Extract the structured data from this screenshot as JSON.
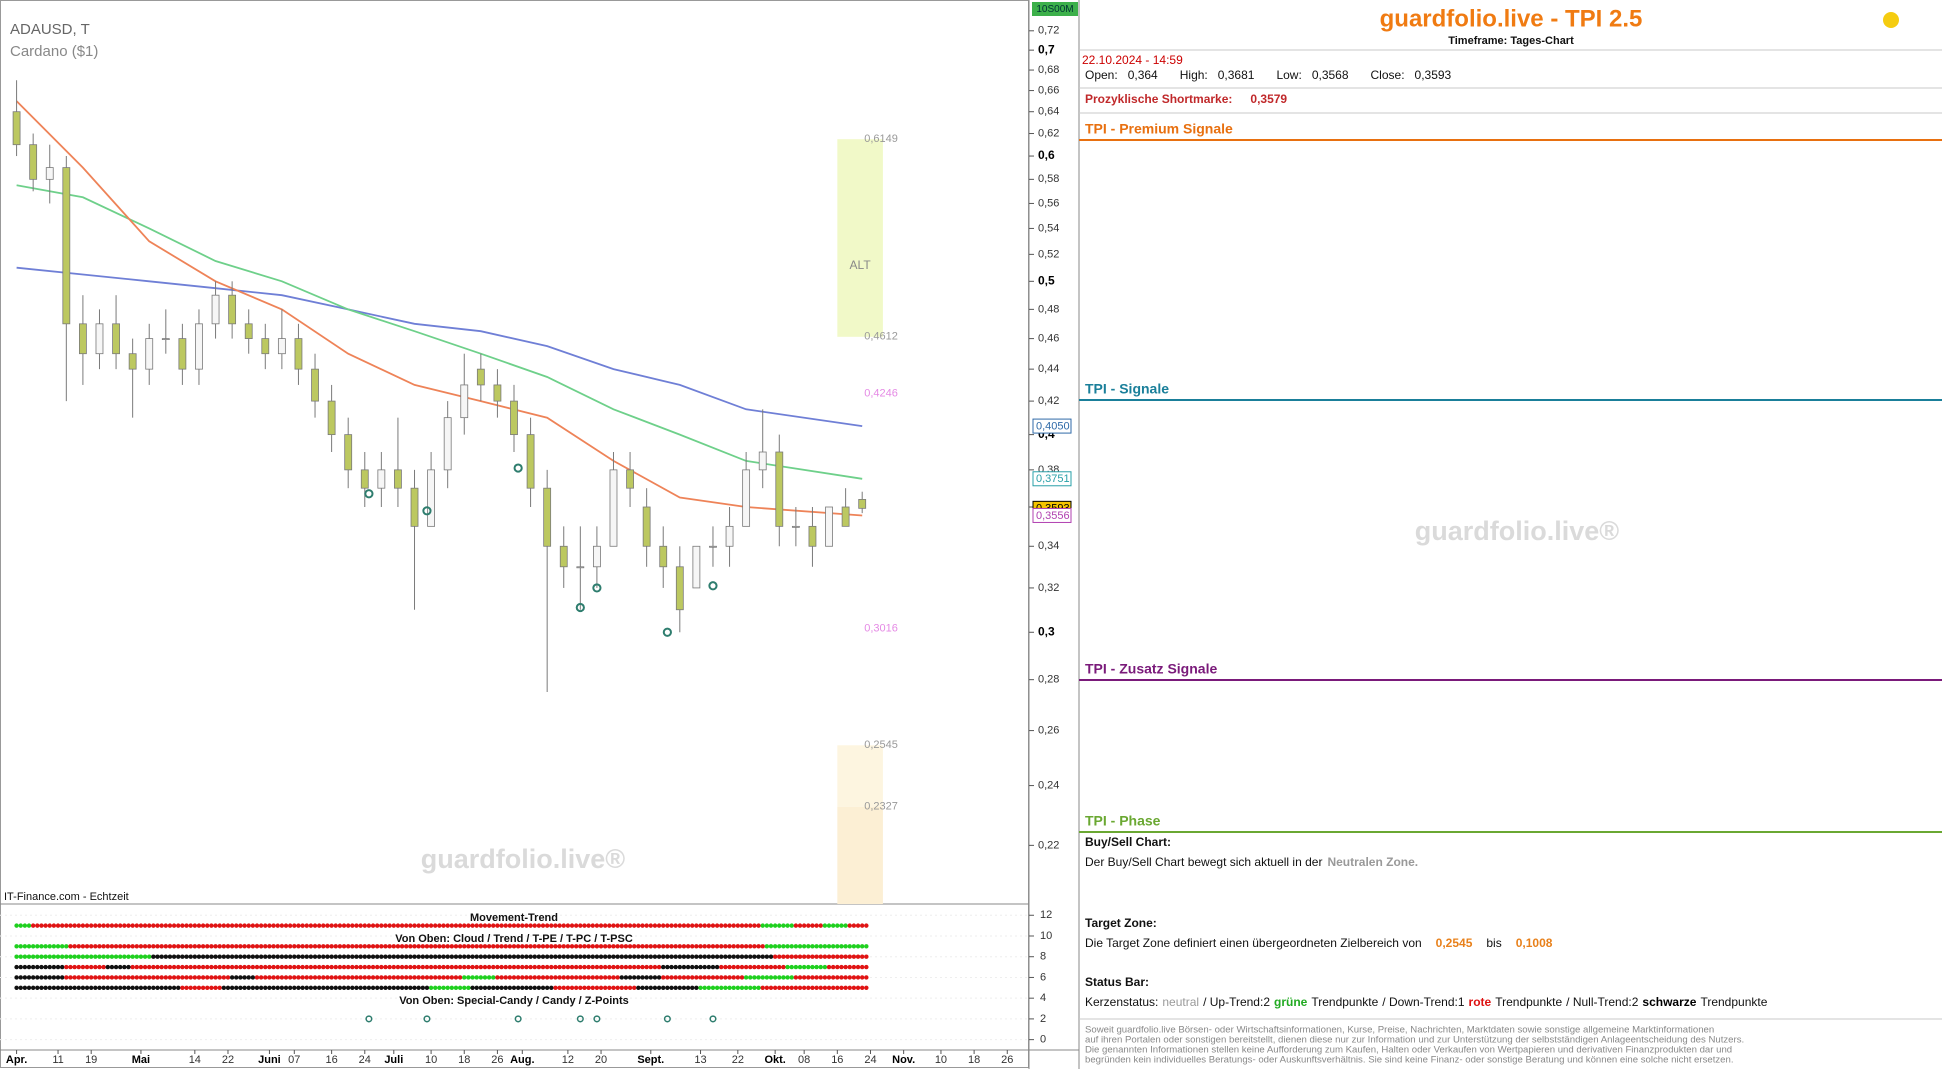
{
  "header": {
    "symbol": "ADAUSD, T",
    "name": "Cardano ($1)",
    "source": "IT-Finance.com - Echtzeit",
    "badge": "10S00M",
    "watermark": "guardfolio.live®"
  },
  "chart_data": [
    {
      "type": "candlestick",
      "x": [
        "2024-04-01",
        "2024-04-05",
        "2024-04-09",
        "2024-04-13",
        "2024-04-17",
        "2024-04-21",
        "2024-04-25",
        "2024-04-29",
        "2024-05-03",
        "2024-05-07",
        "2024-05-11",
        "2024-05-15",
        "2024-05-19",
        "2024-05-23",
        "2024-05-27",
        "2024-05-31",
        "2024-06-04",
        "2024-06-08",
        "2024-06-12",
        "2024-06-16",
        "2024-06-20",
        "2024-06-24",
        "2024-06-28",
        "2024-07-02",
        "2024-07-06",
        "2024-07-10",
        "2024-07-14",
        "2024-07-18",
        "2024-07-22",
        "2024-07-26",
        "2024-07-30",
        "2024-08-03",
        "2024-08-07",
        "2024-08-11",
        "2024-08-15",
        "2024-08-19",
        "2024-08-23",
        "2024-08-27",
        "2024-08-31",
        "2024-09-04",
        "2024-09-08",
        "2024-09-12",
        "2024-09-16",
        "2024-09-20",
        "2024-09-24",
        "2024-09-28",
        "2024-10-02",
        "2024-10-06",
        "2024-10-10",
        "2024-10-14",
        "2024-10-18",
        "2024-10-22"
      ],
      "open": [
        0.64,
        0.61,
        0.58,
        0.59,
        0.47,
        0.45,
        0.47,
        0.45,
        0.44,
        0.46,
        0.46,
        0.44,
        0.47,
        0.49,
        0.47,
        0.46,
        0.45,
        0.46,
        0.44,
        0.42,
        0.4,
        0.38,
        0.37,
        0.38,
        0.37,
        0.35,
        0.38,
        0.41,
        0.44,
        0.43,
        0.42,
        0.4,
        0.37,
        0.34,
        0.33,
        0.33,
        0.34,
        0.38,
        0.36,
        0.34,
        0.33,
        0.32,
        0.34,
        0.34,
        0.35,
        0.38,
        0.39,
        0.35,
        0.35,
        0.34,
        0.36,
        0.364
      ],
      "high": [
        0.67,
        0.62,
        0.61,
        0.6,
        0.49,
        0.48,
        0.49,
        0.46,
        0.47,
        0.48,
        0.47,
        0.48,
        0.5,
        0.5,
        0.48,
        0.47,
        0.48,
        0.47,
        0.45,
        0.43,
        0.41,
        0.39,
        0.39,
        0.41,
        0.38,
        0.39,
        0.42,
        0.45,
        0.45,
        0.44,
        0.43,
        0.41,
        0.38,
        0.35,
        0.35,
        0.35,
        0.39,
        0.39,
        0.37,
        0.35,
        0.34,
        0.34,
        0.35,
        0.36,
        0.39,
        0.415,
        0.4,
        0.36,
        0.36,
        0.36,
        0.37,
        0.3681
      ],
      "low": [
        0.6,
        0.57,
        0.56,
        0.42,
        0.43,
        0.44,
        0.44,
        0.41,
        0.43,
        0.45,
        0.43,
        0.43,
        0.46,
        0.46,
        0.45,
        0.44,
        0.44,
        0.43,
        0.41,
        0.39,
        0.37,
        0.36,
        0.36,
        0.36,
        0.31,
        0.35,
        0.37,
        0.4,
        0.42,
        0.41,
        0.39,
        0.36,
        0.275,
        0.32,
        0.31,
        0.32,
        0.34,
        0.36,
        0.33,
        0.32,
        0.3,
        0.32,
        0.33,
        0.33,
        0.35,
        0.37,
        0.34,
        0.34,
        0.33,
        0.34,
        0.35,
        0.3568
      ],
      "close": [
        0.61,
        0.58,
        0.59,
        0.47,
        0.45,
        0.47,
        0.45,
        0.44,
        0.46,
        0.46,
        0.44,
        0.47,
        0.49,
        0.47,
        0.46,
        0.45,
        0.46,
        0.44,
        0.42,
        0.4,
        0.38,
        0.37,
        0.38,
        0.37,
        0.35,
        0.38,
        0.41,
        0.43,
        0.43,
        0.42,
        0.4,
        0.37,
        0.34,
        0.33,
        0.33,
        0.34,
        0.38,
        0.37,
        0.34,
        0.33,
        0.31,
        0.34,
        0.34,
        0.35,
        0.38,
        0.39,
        0.35,
        0.35,
        0.34,
        0.36,
        0.35,
        0.3593
      ],
      "up_color": "#f6f6f6",
      "down_color": "#bcc860",
      "edge_color": "#7a7a7a",
      "xlim": [
        "2024-03-28",
        "2024-12-01"
      ],
      "xticks": [
        {
          "value": "2024-04-01",
          "label": "Apr."
        },
        {
          "value": "2024-04-11",
          "label": "11"
        },
        {
          "value": "2024-04-19",
          "label": "19"
        },
        {
          "value": "2024-05-01",
          "label": "Mai"
        },
        {
          "value": "2024-05-14",
          "label": "14"
        },
        {
          "value": "2024-05-22",
          "label": "22"
        },
        {
          "value": "2024-06-01",
          "label": "Juni"
        },
        {
          "value": "2024-06-07",
          "label": "07"
        },
        {
          "value": "2024-06-16",
          "label": "16"
        },
        {
          "value": "2024-06-24",
          "label": "24"
        },
        {
          "value": "2024-07-01",
          "label": "Juli"
        },
        {
          "value": "2024-07-10",
          "label": "10"
        },
        {
          "value": "2024-07-18",
          "label": "18"
        },
        {
          "value": "2024-07-26",
          "label": "26"
        },
        {
          "value": "2024-08-01",
          "label": "Aug."
        },
        {
          "value": "2024-08-12",
          "label": "12"
        },
        {
          "value": "2024-08-20",
          "label": "20"
        },
        {
          "value": "2024-09-01",
          "label": "Sept."
        },
        {
          "value": "2024-09-13",
          "label": "13"
        },
        {
          "value": "2024-09-22",
          "label": "22"
        },
        {
          "value": "2024-10-01",
          "label": "Okt."
        },
        {
          "value": "2024-10-08",
          "label": "08"
        },
        {
          "value": "2024-10-16",
          "label": "16"
        },
        {
          "value": "2024-10-24",
          "label": "24"
        },
        {
          "value": "2024-11-01",
          "label": "Nov."
        },
        {
          "value": "2024-11-10",
          "label": "10"
        },
        {
          "value": "2024-11-18",
          "label": "18"
        },
        {
          "value": "2024-11-26",
          "label": "26"
        }
      ],
      "ylim": [
        0.202,
        0.753
      ],
      "log": true,
      "yticks": [
        {
          "value": 0.22,
          "label": "0,22"
        },
        {
          "value": 0.24,
          "label": "0,24"
        },
        {
          "value": 0.26,
          "label": "0,26"
        },
        {
          "value": 0.28,
          "label": "0,28"
        },
        {
          "value": 0.3,
          "label": "0,3"
        },
        {
          "value": 0.32,
          "label": "0,32"
        },
        {
          "value": 0.34,
          "label": "0,34"
        },
        {
          "value": 0.36,
          "label": "0,36"
        },
        {
          "value": 0.38,
          "label": "0,38"
        },
        {
          "value": 0.4,
          "label": "0,4"
        },
        {
          "value": 0.42,
          "label": "0,42"
        },
        {
          "value": 0.44,
          "label": "0,44"
        },
        {
          "value": 0.46,
          "label": "0,46"
        },
        {
          "value": 0.48,
          "label": "0,48"
        },
        {
          "value": 0.5,
          "label": "0,5"
        },
        {
          "value": 0.52,
          "label": "0,52"
        },
        {
          "value": 0.54,
          "label": "0,54"
        },
        {
          "value": 0.56,
          "label": "0,56"
        },
        {
          "value": 0.58,
          "label": "0,58"
        },
        {
          "value": 0.6,
          "label": "0,6"
        },
        {
          "value": 0.62,
          "label": "0,62"
        },
        {
          "value": 0.64,
          "label": "0,64"
        },
        {
          "value": 0.66,
          "label": "0,66"
        },
        {
          "value": 0.68,
          "label": "0,68"
        },
        {
          "value": 0.7,
          "label": "0,7"
        },
        {
          "value": 0.72,
          "label": "0,72"
        }
      ],
      "ribbon": {
        "x": [
          "2024-04-01",
          "2024-04-17",
          "2024-05-03",
          "2024-05-19",
          "2024-06-04",
          "2024-06-20",
          "2024-07-06",
          "2024-07-22",
          "2024-08-07",
          "2024-08-23",
          "2024-09-08",
          "2024-09-24",
          "2024-10-22"
        ],
        "series": [
          {
            "color": "#6f7fd6",
            "values": [
              0.51,
              0.505,
              0.5,
              0.495,
              0.49,
              0.48,
              0.47,
              0.465,
              0.455,
              0.44,
              0.43,
              0.415,
              0.405
            ]
          },
          {
            "color": "#6ed08a",
            "values": [
              0.575,
              0.565,
              0.54,
              0.515,
              0.5,
              0.48,
              0.465,
              0.45,
              0.435,
              0.415,
              0.4,
              0.385,
              0.3751
            ]
          },
          {
            "color": "#ee8358",
            "values": [
              0.65,
              0.59,
              0.53,
              0.5,
              0.48,
              0.45,
              0.43,
              0.42,
              0.41,
              0.385,
              0.365,
              0.36,
              0.3556
            ]
          }
        ]
      },
      "price_labels": [
        {
          "value": 0.405,
          "label": "0,4050",
          "color": "#2f6aa8",
          "background": "#ffffff"
        },
        {
          "value": 0.3751,
          "label": "0,3751",
          "color": "#2aa0a8",
          "background": "#ffffff"
        },
        {
          "value": 0.3593,
          "label": "0,3593",
          "color": "#000000",
          "background": "#f5c400"
        },
        {
          "value": 0.3556,
          "label": "0,3556",
          "color": "#b040b0",
          "background": "#ffffff"
        }
      ],
      "zones": [
        {
          "x0": "2024-10-16",
          "x1": "2024-10-27",
          "high": {
            "value": 0.6149,
            "label": "0,6149"
          },
          "low": {
            "value": 0.4612,
            "label": "0,4612"
          },
          "label": "ALT",
          "color": "#f1f9c8"
        },
        {
          "x0": "2024-10-16",
          "x1": "2024-10-27",
          "high": {
            "value": 0.2545,
            "label": "0,2545"
          },
          "level": {
            "value": 0.2327,
            "label": "0,2327"
          },
          "color": "#fdf5e0",
          "color2": "#fcefd4"
        }
      ],
      "levels": [
        {
          "x": "2024-10-27",
          "value": 0.4246,
          "label": "0,4246",
          "color": "#e58ae5"
        },
        {
          "x": "2024-10-27",
          "value": 0.3016,
          "label": "0,3016",
          "color": "#e58ae5"
        }
      ],
      "signals": {
        "x": [
          "2024-06-25",
          "2024-07-09",
          "2024-07-31",
          "2024-08-15",
          "2024-08-19",
          "2024-09-05",
          "2024-09-16"
        ],
        "values": [
          0.367,
          0.358,
          0.381,
          0.311,
          0.32,
          0.3,
          0.321
        ],
        "color": "#2e7d6e"
      }
    },
    {
      "type": "dots",
      "title": "Movement-Trend",
      "subtitles": [
        "Von Oben: Cloud / Trend / T-PE / T-PC / T-PSC",
        "Von Oben: Special-Candy / Candy / Z-Points"
      ],
      "start": "2024-04-01",
      "ylim": [
        -1,
        12.7
      ],
      "yticks": [
        0,
        2,
        4,
        6,
        8,
        10,
        12
      ],
      "colors": {
        "G": "#1fd01f",
        "R": "#e01414",
        "K": "#111111"
      },
      "rows": [
        {
          "y": 11,
          "runs": [
            [
              "G",
              4
            ],
            [
              "R",
              176
            ],
            [
              "G",
              8
            ],
            [
              "R",
              7
            ],
            [
              "G",
              6
            ],
            [
              "R",
              5
            ]
          ]
        },
        {
          "y": 9,
          "runs": [
            [
              "G",
              13
            ],
            [
              "R",
              168
            ],
            [
              "G",
              25
            ]
          ]
        },
        {
          "y": 8,
          "runs": [
            [
              "G",
              33
            ],
            [
              "K",
              150
            ],
            [
              "R",
              23
            ]
          ]
        },
        {
          "y": 7,
          "runs": [
            [
              "K",
              12
            ],
            [
              "R",
              10
            ],
            [
              "K",
              6
            ],
            [
              "R",
              128
            ],
            [
              "K",
              14
            ],
            [
              "R",
              16
            ],
            [
              "G",
              10
            ],
            [
              "R",
              10
            ]
          ]
        },
        {
          "y": 6,
          "runs": [
            [
              "K",
              12
            ],
            [
              "R",
              40
            ],
            [
              "K",
              6
            ],
            [
              "R",
              50
            ],
            [
              "G",
              8
            ],
            [
              "R",
              30
            ],
            [
              "K",
              10
            ],
            [
              "R",
              20
            ],
            [
              "G",
              12
            ],
            [
              "R",
              18
            ]
          ]
        },
        {
          "y": 5,
          "runs": [
            [
              "K",
              40
            ],
            [
              "R",
              10
            ],
            [
              "K",
              50
            ],
            [
              "G",
              10
            ],
            [
              "K",
              20
            ],
            [
              "R",
              20
            ],
            [
              "K",
              15
            ],
            [
              "G",
              15
            ],
            [
              "R",
              26
            ]
          ]
        }
      ],
      "zpoints": {
        "x": [
          "2024-06-25",
          "2024-07-09",
          "2024-07-31",
          "2024-08-15",
          "2024-08-19",
          "2024-09-05",
          "2024-09-16"
        ],
        "values": [
          2,
          2,
          2,
          2,
          2,
          2,
          2
        ],
        "color": "#2e7d6e"
      }
    }
  ],
  "panel": {
    "title": "guardfolio.live - TPI 2.5",
    "timeframe": "Timeframe: Tages-Chart",
    "datetime": "22.10.2024 - 14:59",
    "ohlc": [
      {
        "label": "Open:",
        "value": "0,364"
      },
      {
        "label": "High:",
        "value": "0,3681"
      },
      {
        "label": "Low:",
        "value": "0,3568"
      },
      {
        "label": "Close:",
        "value": "0,3593"
      }
    ],
    "shortmark": {
      "label": "Prozyklische Shortmarke:",
      "value": "0,3579"
    },
    "sections": [
      {
        "title": "TPI - Premium Signale",
        "color": "#e87010"
      },
      {
        "title": "TPI - Signale",
        "color": "#1a7f9a"
      },
      {
        "title": "TPI - Zusatz Signale",
        "color": "#7a1a7a"
      },
      {
        "title": "TPI - Phase",
        "color": "#6aa832"
      }
    ],
    "buysell": {
      "heading": "Buy/Sell Chart:",
      "text": "Der Buy/Sell Chart bewegt sich aktuell in der",
      "zone": "Neutralen Zone."
    },
    "target": {
      "heading": "Target Zone:",
      "text": "Die Target Zone definiert einen übergeordneten Zielbereich von",
      "from": "0,2545",
      "between": "bis",
      "to": "0,1008"
    },
    "status": {
      "heading": "Status Bar:",
      "parts": [
        {
          "text": "Kerzenstatus:"
        },
        {
          "text": "neutral",
          "color": "#9a9a9a"
        },
        {
          "text": "/ Up-Trend:2"
        },
        {
          "text": "grüne",
          "color": "#22aa22",
          "bold": true
        },
        {
          "text": "Trendpunkte"
        },
        {
          "text": "/ Down-Trend:1"
        },
        {
          "text": "rote",
          "color": "#dd1111",
          "bold": true
        },
        {
          "text": "Trendpunkte"
        },
        {
          "text": "/ Null-Trend:2"
        },
        {
          "text": "schwarze",
          "color": "#000000",
          "bold": true
        },
        {
          "text": "Trendpunkte"
        }
      ]
    },
    "disclaimer": [
      "Soweit guardfolio.live Börsen- oder Wirtschaftsinformationen, Kurse, Preise, Nachrichten, Marktdaten sowie sonstige allgemeine Marktinformationen",
      "auf ihren Portalen oder sonstigen bereitstellt, dienen diese nur zur Information und zur Unterstützung der selbstständigen Anlageentscheidung des Nutzers.",
      "Die genannten Informationen stellen keine Aufforderung zum Kaufen, Halten oder Verkaufen von Wertpapieren und derivativen Finanzprodukten dar und",
      "begründen kein individuelles Beratungs- oder Auskunftsverhältnis. Sie sind keine Finanz- oder sonstige Beratung und können eine solche nicht ersetzen."
    ]
  }
}
